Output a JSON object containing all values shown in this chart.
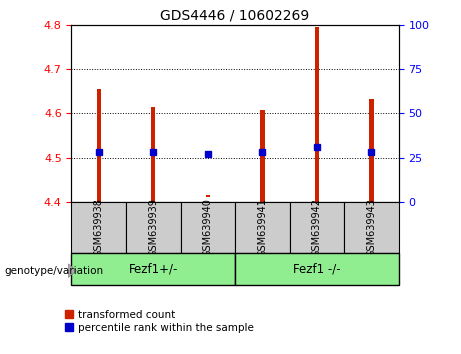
{
  "title": "GDS4446 / 10602269",
  "samples": [
    "GSM639938",
    "GSM639939",
    "GSM639940",
    "GSM639941",
    "GSM639942",
    "GSM639943"
  ],
  "bar_bottoms": [
    4.4,
    4.4,
    4.41,
    4.4,
    4.4,
    4.4
  ],
  "bar_tops": [
    4.655,
    4.615,
    4.415,
    4.608,
    4.795,
    4.633
  ],
  "percentile_values": [
    4.513,
    4.513,
    4.507,
    4.513,
    4.523,
    4.513
  ],
  "ylim_left": [
    4.4,
    4.8
  ],
  "yticks_left": [
    4.4,
    4.5,
    4.6,
    4.7,
    4.8
  ],
  "yticks_right": [
    0,
    25,
    50,
    75,
    100
  ],
  "ylim_right": [
    0,
    100
  ],
  "bar_color": "#cc2200",
  "percentile_color": "#0000cc",
  "group1_label": "Fezf1+/-",
  "group2_label": "Fezf1 -/-",
  "group1_indices": [
    0,
    1,
    2
  ],
  "group2_indices": [
    3,
    4,
    5
  ],
  "group_bg_color": "#90ee90",
  "sample_bg_color": "#cccccc",
  "legend_red_label": "transformed count",
  "legend_blue_label": "percentile rank within the sample",
  "genotype_label": "genotype/variation",
  "bar_width": 0.08,
  "marker_size": 4
}
